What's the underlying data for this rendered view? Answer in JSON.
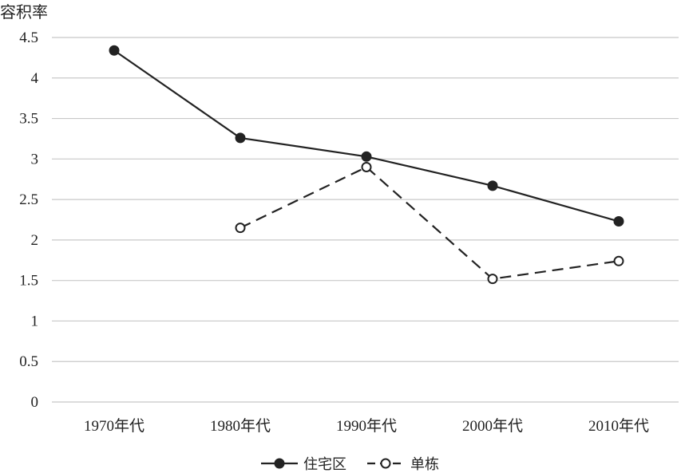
{
  "chart_data": {
    "type": "line",
    "ylabel": "容积率",
    "xlabel": "",
    "categories": [
      "1970年代",
      "1980年代",
      "1990年代",
      "2000年代",
      "2010年代"
    ],
    "ylim": [
      0,
      4.5
    ],
    "yticks": [
      "0",
      "0.5",
      "1",
      "1.5",
      "2",
      "2.5",
      "3",
      "3.5",
      "4",
      "4.5"
    ],
    "grid": true,
    "legend_position": "bottom-center",
    "series": [
      {
        "name": "住宅区",
        "values": [
          4.34,
          3.26,
          3.03,
          2.67,
          2.23
        ],
        "style": "solid",
        "marker": "filled-circle",
        "color": "#222222"
      },
      {
        "name": "单栋",
        "values": [
          null,
          2.15,
          2.9,
          1.52,
          1.74
        ],
        "style": "dashed",
        "marker": "open-circle",
        "color": "#222222"
      }
    ]
  }
}
